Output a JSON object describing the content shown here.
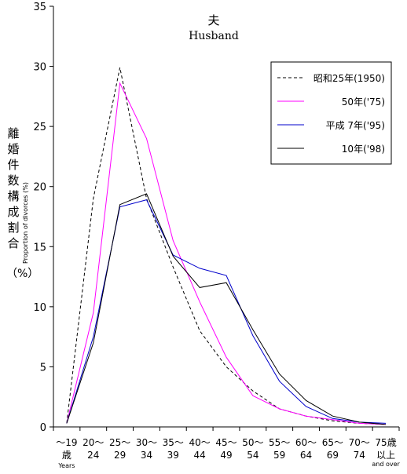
{
  "chart_data": {
    "type": "line",
    "title": "夫",
    "subtitle": "Husband",
    "ylabel_jp": "離婚件数構成割合",
    "ylabel_en": "Proportion of divorces (%)",
    "yunit": "（%）",
    "ylim": [
      0,
      35
    ],
    "yticks": [
      "0",
      "5",
      "10",
      "15",
      "20",
      "25",
      "30",
      "35"
    ],
    "categories": [
      {
        "top": "～19",
        "bottom": "歳"
      },
      {
        "top": "20～",
        "bottom": "24"
      },
      {
        "top": "25～",
        "bottom": "29"
      },
      {
        "top": "30～",
        "bottom": "34"
      },
      {
        "top": "35～",
        "bottom": "39"
      },
      {
        "top": "40～",
        "bottom": "44"
      },
      {
        "top": "45～",
        "bottom": "49"
      },
      {
        "top": "50～",
        "bottom": "54"
      },
      {
        "top": "55～",
        "bottom": "59"
      },
      {
        "top": "60～",
        "bottom": "64"
      },
      {
        "top": "65～",
        "bottom": "69"
      },
      {
        "top": "70～",
        "bottom": "74"
      },
      {
        "top": "75歳",
        "bottom": "以上"
      }
    ],
    "x_note_first": "Years",
    "x_note_last": "and over",
    "legend_position": "top-right",
    "grid": false,
    "series": [
      {
        "name": "昭和25年(1950)",
        "color": "#000000",
        "dash": true,
        "values": [
          0.3,
          19.0,
          29.9,
          19.0,
          13.3,
          8.0,
          5.0,
          3.0,
          1.5,
          0.9,
          0.5,
          0.3,
          0.2
        ]
      },
      {
        "name": "50年('75)",
        "color": "#ff00ff",
        "dash": false,
        "values": [
          0.3,
          9.5,
          28.6,
          24.0,
          15.5,
          10.4,
          5.8,
          2.6,
          1.5,
          0.9,
          0.6,
          0.3,
          0.2
        ]
      },
      {
        "name": "平成 7年('95)",
        "color": "#0000cc",
        "dash": false,
        "values": [
          0.3,
          7.5,
          18.3,
          18.9,
          14.3,
          13.2,
          12.6,
          7.6,
          3.8,
          1.7,
          0.7,
          0.4,
          0.3
        ]
      },
      {
        "name": "10年('98)",
        "color": "#000000",
        "dash": false,
        "values": [
          0.3,
          7.0,
          18.5,
          19.4,
          14.2,
          11.6,
          12.0,
          8.1,
          4.4,
          2.2,
          0.9,
          0.4,
          0.2
        ]
      }
    ]
  }
}
